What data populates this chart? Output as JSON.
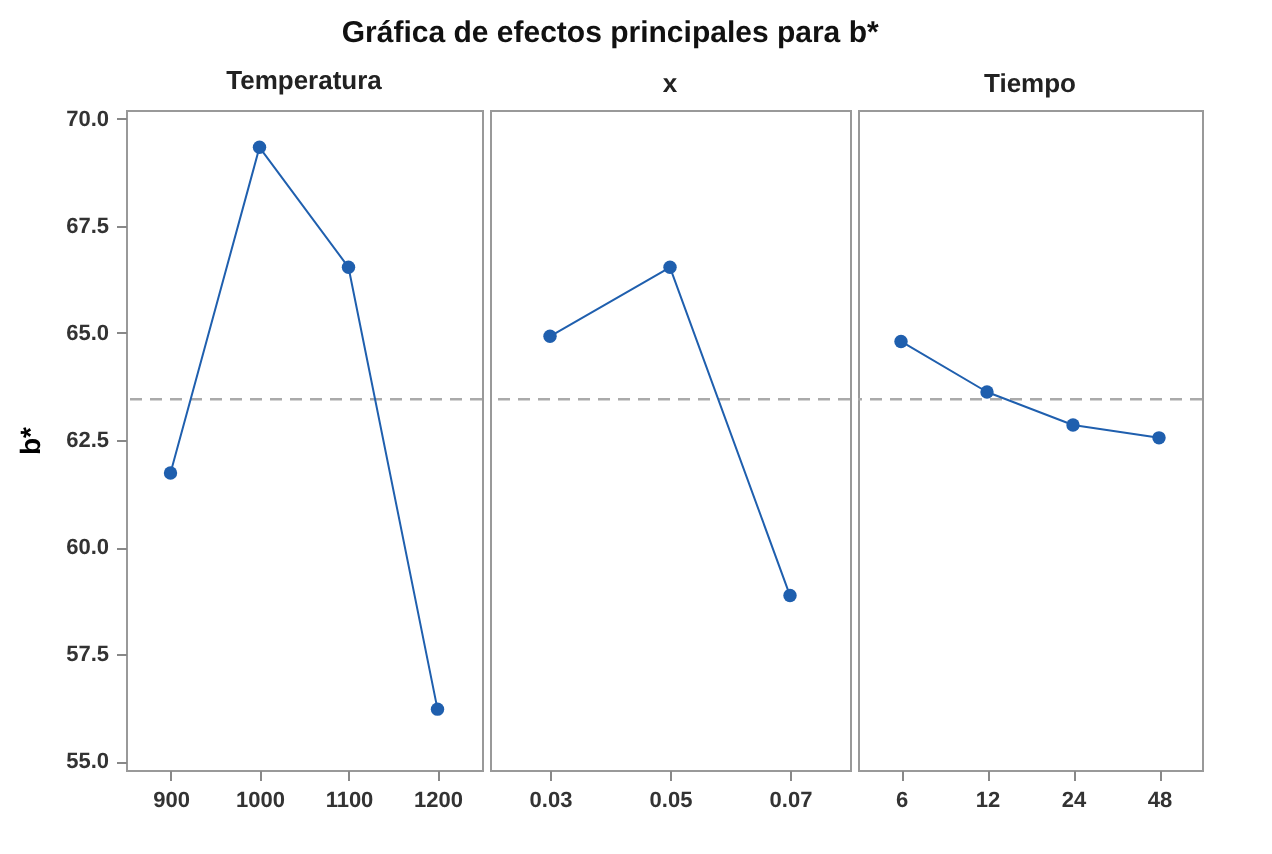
{
  "chart_data": [
    {
      "type": "line",
      "title": "Gráfica de efectos principales para b*",
      "xlabel": "Temperatura",
      "ylabel": "b*",
      "categories": [
        "900",
        "1000",
        "1100",
        "1200"
      ],
      "series": [
        {
          "color": "#1f5fae",
          "values": [
            61.73,
            69.33,
            66.53,
            56.22
          ]
        }
      ],
      "ylim": [
        54.8,
        70.2
      ],
      "yticks": [
        {
          "value": 55,
          "label": "55.0"
        },
        {
          "value": 57.5,
          "label": "57.5"
        },
        {
          "value": 60,
          "label": "60.0"
        },
        {
          "value": 62.5,
          "label": "62.5"
        },
        {
          "value": 65,
          "label": "65.0"
        },
        {
          "value": 67.5,
          "label": "67.5"
        },
        {
          "value": 70,
          "label": "70.0"
        }
      ],
      "ref_lines": [
        {
          "axis": "y",
          "value": 63.45,
          "color": "#aaaaaa",
          "line_style": "dashed"
        }
      ],
      "marker": "circle",
      "grid": false
    },
    {
      "type": "line",
      "xlabel": "x",
      "categories": [
        "0.03",
        "0.05",
        "0.07"
      ],
      "series": [
        {
          "color": "#1f5fae",
          "values": [
            64.92,
            66.53,
            58.87
          ]
        }
      ],
      "ylim": [
        54.8,
        70.2
      ],
      "tick_labels": "x",
      "ref_lines": [
        {
          "axis": "y",
          "value": 63.45,
          "color": "#aaaaaa",
          "line_style": "dashed"
        }
      ],
      "marker": "circle",
      "grid": false
    },
    {
      "type": "line",
      "xlabel": "Tiempo",
      "categories": [
        "6",
        "12",
        "24",
        "48"
      ],
      "series": [
        {
          "color": "#1f5fae",
          "values": [
            64.8,
            63.62,
            62.85,
            62.55
          ]
        }
      ],
      "ylim": [
        54.8,
        70.2
      ],
      "tick_labels": "x",
      "ref_lines": [
        {
          "axis": "y",
          "value": 63.45,
          "color": "#aaaaaa",
          "line_style": "dashed"
        }
      ],
      "marker": "circle",
      "grid": false
    }
  ]
}
